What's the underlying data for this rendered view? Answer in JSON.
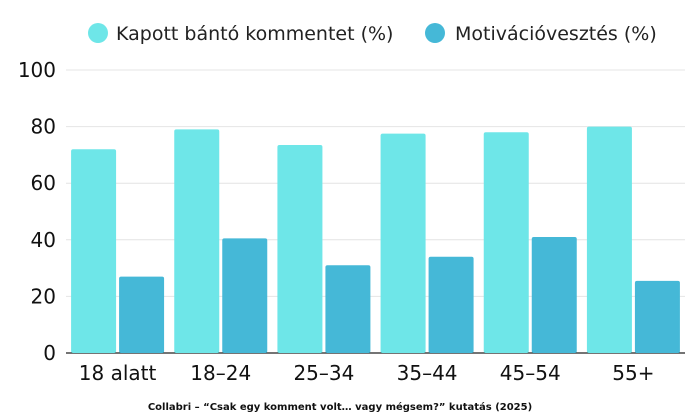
{
  "chart_data": {
    "type": "bar",
    "categories": [
      "18 alatt",
      "18–24",
      "25–34",
      "35–44",
      "45–54",
      "55+"
    ],
    "series": [
      {
        "name": "Kapott bántó kommentet (%)",
        "color": "#6ee6e8",
        "values": [
          72,
          79,
          73.5,
          77.5,
          78,
          80
        ]
      },
      {
        "name": "Motivációvesztés (%)",
        "color": "#45b8d7",
        "values": [
          27,
          40.5,
          31,
          34,
          41,
          25.5
        ]
      }
    ],
    "yticks": [
      0,
      20,
      40,
      60,
      80,
      100
    ],
    "ylim": [
      0,
      100
    ],
    "grid": true,
    "legend_position": "top",
    "caption": "Collabri – “Csak egy komment volt… vagy mégsem?” kutatás (2025)"
  }
}
